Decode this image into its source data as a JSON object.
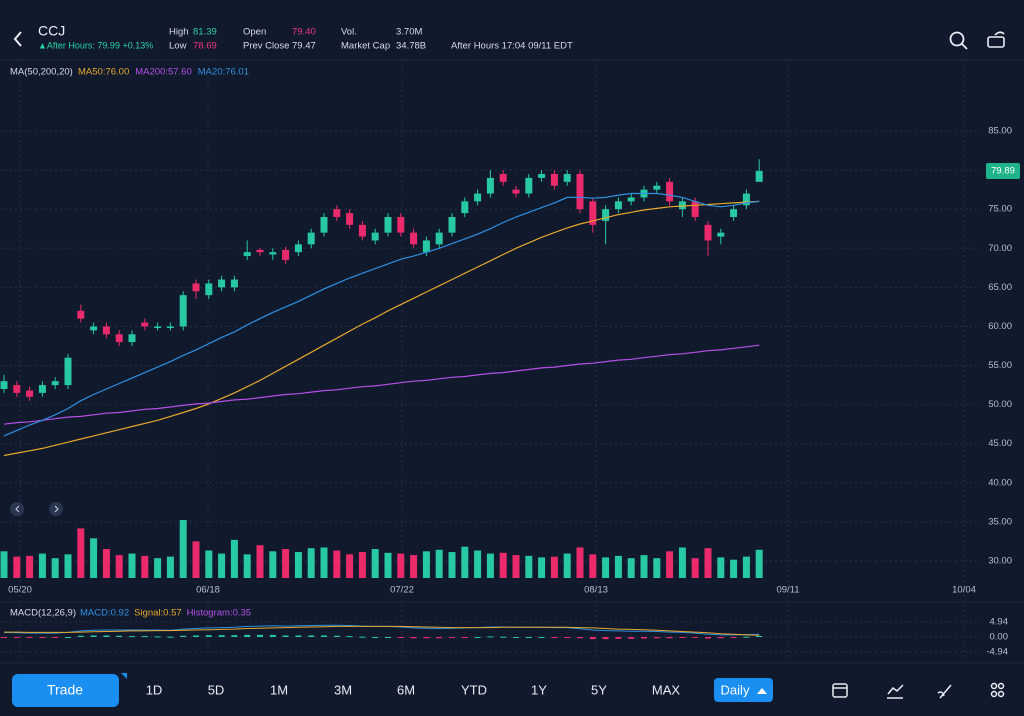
{
  "header": {
    "symbol": "CCJ",
    "after_hours": "▲After Hours: 79.99 +0.13%",
    "stats": [
      {
        "label": "High",
        "value": "81.39",
        "color": "#2bd3a4"
      },
      {
        "label": "Low",
        "value": "78.69",
        "color": "#f0367a"
      },
      {
        "label": "Open",
        "value": "79.40",
        "color": "#f0367a"
      },
      {
        "label": "Prev Close",
        "value": "79.47",
        "color": "#d6dbe6"
      },
      {
        "label": "Vol.",
        "value": "3.70M",
        "color": "#d6dbe6"
      },
      {
        "label": "Market Cap",
        "value": "34.78B",
        "color": "#d6dbe6"
      }
    ],
    "session": "After Hours 17:04 09/11 EDT"
  },
  "chart_data": {
    "type": "candlestick",
    "indicator_title": "MA(50,200,20)",
    "ma_labels": [
      "MA50:76.00",
      "MA200:57.60",
      "MA20:76.01"
    ],
    "price_tag": 79.89,
    "x_labels": [
      "05/20",
      "06/18",
      "07/22",
      "08/13",
      "09/11",
      "10/04"
    ],
    "up_color": "#26c9a1",
    "down_color": "#ea2a6b",
    "open": [
      52,
      52.5,
      51.8,
      51.5,
      52.5,
      52.5,
      62,
      59.5,
      60,
      59,
      58,
      60.5,
      59.8,
      59.8,
      60,
      65.5,
      64,
      65,
      65,
      69,
      69.8,
      69.2,
      69.8,
      69.5,
      70.5,
      72,
      75,
      74.5,
      73,
      71,
      72,
      74,
      72,
      69.5,
      70.5,
      72,
      74.5,
      76,
      77,
      79.5,
      77.5,
      77,
      79,
      79.5,
      78.5,
      79.5,
      76,
      73.5,
      75,
      76,
      76.5,
      77.5,
      78.5,
      75,
      76,
      73,
      71.5,
      74,
      75.5,
      78.5
    ],
    "high": [
      53.8,
      53,
      52.3,
      53,
      53.5,
      56.5,
      62.8,
      60.5,
      60.5,
      59.5,
      59.5,
      61,
      60.5,
      60.5,
      64.5,
      66,
      66,
      66.5,
      66.5,
      71,
      70,
      70,
      70.2,
      71,
      72.5,
      74.5,
      75.5,
      75,
      73.5,
      72.5,
      74.5,
      74.5,
      72.5,
      71.5,
      72.5,
      74.5,
      76.5,
      77.5,
      80,
      80,
      78,
      79.5,
      80,
      80,
      80,
      80,
      76.5,
      75.5,
      76.5,
      77,
      78,
      78.5,
      79,
      76.5,
      76.5,
      73.5,
      72.5,
      75.5,
      77.5,
      81.39
    ],
    "low": [
      51.5,
      51,
      50.5,
      51,
      52,
      52,
      60.5,
      59,
      58.5,
      57.5,
      57.5,
      59.5,
      59.5,
      59.5,
      59.5,
      63.5,
      63.5,
      64.5,
      64.5,
      68.5,
      69,
      68.5,
      68,
      69,
      70,
      71.5,
      73.5,
      72.5,
      71,
      70.5,
      71.5,
      71.5,
      70,
      69,
      70,
      71.5,
      74,
      75.5,
      76.5,
      78,
      76.5,
      76.5,
      78.5,
      77.5,
      78,
      74.5,
      72,
      70.5,
      74.5,
      75.5,
      76,
      77,
      75.5,
      74,
      73.5,
      69,
      70.5,
      73.5,
      75,
      78.69
    ],
    "close": [
      53,
      51.5,
      51,
      52.5,
      53,
      56,
      61,
      60,
      59,
      58,
      59,
      60,
      60,
      60,
      64,
      64.5,
      65.5,
      66,
      66,
      69.5,
      69.5,
      69.5,
      68.5,
      70.5,
      72,
      74,
      74,
      73,
      71.5,
      72,
      74,
      72,
      70.5,
      71,
      72,
      74,
      76,
      77,
      79,
      78.5,
      77,
      79,
      79.5,
      78,
      79.5,
      75,
      73,
      75,
      76,
      76.5,
      77.5,
      78,
      76,
      76,
      74,
      71,
      72,
      75,
      77,
      79.89
    ],
    "series": [
      {
        "name": "MA50",
        "color": "#e6a82c",
        "values": [
          43.5,
          43.8,
          44.1,
          44.4,
          44.8,
          45.2,
          45.6,
          46,
          46.4,
          46.8,
          47.2,
          47.6,
          48,
          48.5,
          49,
          49.5,
          50.1,
          50.8,
          51.5,
          52.3,
          53.1,
          54,
          54.9,
          55.8,
          56.7,
          57.6,
          58.5,
          59.4,
          60.3,
          61.1,
          62,
          62.8,
          63.6,
          64.4,
          65.2,
          66,
          66.8,
          67.6,
          68.4,
          69.2,
          70,
          70.7,
          71.4,
          72,
          72.6,
          73.1,
          73.5,
          73.9,
          74.3,
          74.6,
          74.9,
          75.1,
          75.3,
          75.4,
          75.5,
          75.6,
          75.7,
          75.8,
          75.9,
          76
        ]
      },
      {
        "name": "MA200",
        "color": "#b64fe8",
        "values": [
          47.5,
          47.7,
          47.8,
          48,
          48.2,
          48.4,
          48.5,
          48.7,
          48.9,
          49,
          49.2,
          49.4,
          49.5,
          49.7,
          49.9,
          50.1,
          50.2,
          50.4,
          50.6,
          50.7,
          50.9,
          51.1,
          51.3,
          51.4,
          51.6,
          51.8,
          51.9,
          52.1,
          52.3,
          52.4,
          52.6,
          52.8,
          53,
          53.1,
          53.3,
          53.5,
          53.6,
          53.8,
          54,
          54.1,
          54.3,
          54.5,
          54.7,
          54.8,
          55,
          55.2,
          55.3,
          55.5,
          55.7,
          55.8,
          56,
          56.2,
          56.4,
          56.5,
          56.7,
          56.9,
          57,
          57.2,
          57.4,
          57.6
        ]
      },
      {
        "name": "MA20",
        "color": "#2f8fe0",
        "values": [
          46,
          46.7,
          47.4,
          48,
          48.7,
          49.5,
          50.5,
          51.3,
          52,
          52.7,
          53.4,
          54.1,
          54.8,
          55.5,
          56.3,
          57,
          57.8,
          58.6,
          59.3,
          60.2,
          61,
          61.8,
          62.5,
          63.2,
          64,
          64.8,
          65.5,
          66.2,
          66.8,
          67.4,
          68,
          68.6,
          69,
          69.5,
          70,
          70.6,
          71.2,
          71.8,
          72.5,
          73.3,
          74,
          74.6,
          75.2,
          75.8,
          76.5,
          76.5,
          76.4,
          76.5,
          76.8,
          77,
          77,
          77,
          76.8,
          76.5,
          76,
          75.5,
          75.3,
          75.5,
          75.8,
          76.01
        ]
      }
    ],
    "volume": [
      3.5,
      2.8,
      2.9,
      3.2,
      2.6,
      3.1,
      6.5,
      5.2,
      3.8,
      3.0,
      3.2,
      2.9,
      2.6,
      2.8,
      7.6,
      4.8,
      3.6,
      3.2,
      5.0,
      3.1,
      4.3,
      3.5,
      3.8,
      3.4,
      3.9,
      4.0,
      3.6,
      3.1,
      3.4,
      3.8,
      3.3,
      3.2,
      3.0,
      3.5,
      3.7,
      3.4,
      4.1,
      3.6,
      3.2,
      3.3,
      3.0,
      2.9,
      2.7,
      2.8,
      3.2,
      4.0,
      3.1,
      2.7,
      2.9,
      2.6,
      3.0,
      2.6,
      3.5,
      4.0,
      2.6,
      3.9,
      2.7,
      2.4,
      2.8,
      3.7
    ],
    "ylim": [
      27.57,
      94.08
    ],
    "yticks": [
      {
        "value": 85,
        "label": "85.00"
      },
      {
        "value": 80,
        "label": "80.00"
      },
      {
        "value": 75,
        "label": "75.00"
      },
      {
        "value": 70,
        "label": "70.00"
      },
      {
        "value": 65,
        "label": "65.00"
      },
      {
        "value": 60,
        "label": "60.00"
      },
      {
        "value": 55,
        "label": "55.00"
      },
      {
        "value": 50,
        "label": "50.00"
      },
      {
        "value": 45,
        "label": "45.00"
      },
      {
        "value": 40,
        "label": "40.00"
      },
      {
        "value": 35,
        "label": "35.00"
      },
      {
        "value": 30,
        "label": "30.00"
      }
    ],
    "grid": true,
    "macd": {
      "title": "MACD(12,26,9)",
      "labels": [
        {
          "text": "MACD:0.92",
          "color": "#2f8fe0"
        },
        {
          "text": "Signal:0.57",
          "color": "#e6a82c"
        },
        {
          "text": "Histogram:0.35",
          "color": "#b64fe8"
        }
      ],
      "macd": [
        1.5,
        1.4,
        1.3,
        1.3,
        1.3,
        1.5,
        2,
        2.2,
        2.3,
        2.3,
        2.3,
        2.3,
        2.3,
        2.2,
        2.6,
        2.8,
        3,
        3.1,
        3.2,
        3.5,
        3.6,
        3.7,
        3.6,
        3.7,
        3.8,
        3.9,
        3.9,
        3.8,
        3.6,
        3.5,
        3.5,
        3.3,
        3,
        2.9,
        2.8,
        2.9,
        3,
        3.1,
        3.3,
        3.3,
        3.2,
        3.2,
        3.2,
        3.1,
        3.1,
        2.7,
        2.3,
        2.1,
        2,
        1.9,
        1.9,
        1.8,
        1.6,
        1.5,
        1.3,
        0.9,
        0.7,
        0.7,
        0.8,
        0.92
      ],
      "signal": [
        1.6,
        1.6,
        1.5,
        1.5,
        1.5,
        1.5,
        1.6,
        1.7,
        1.8,
        1.9,
        2,
        2,
        2.1,
        2.1,
        2.2,
        2.3,
        2.4,
        2.5,
        2.6,
        2.8,
        2.9,
        3,
        3.1,
        3.2,
        3.3,
        3.4,
        3.5,
        3.5,
        3.5,
        3.5,
        3.5,
        3.5,
        3.4,
        3.3,
        3.2,
        3.1,
        3.1,
        3.1,
        3.1,
        3.2,
        3.2,
        3.2,
        3.2,
        3.2,
        3.2,
        3.1,
        3,
        2.8,
        2.6,
        2.5,
        2.4,
        2.2,
        2.0,
        1.8,
        1.6,
        1.4,
        1.1,
        0.9,
        0.7,
        0.57
      ],
      "histogram": [
        -0.1,
        -0.2,
        -0.2,
        -0.2,
        -0.2,
        0,
        0.4,
        0.5,
        0.5,
        0.4,
        0.3,
        0.3,
        0.2,
        0.1,
        0.4,
        0.5,
        0.6,
        0.6,
        0.6,
        0.7,
        0.7,
        0.7,
        0.5,
        0.5,
        0.5,
        0.5,
        0.4,
        0.3,
        0.1,
        0,
        0,
        -0.2,
        -0.4,
        -0.4,
        -0.4,
        -0.2,
        -0.1,
        0,
        0.2,
        0.1,
        0,
        0,
        0,
        -0.1,
        -0.1,
        -0.4,
        -0.7,
        -0.7,
        -0.6,
        -0.6,
        -0.5,
        -0.4,
        -0.4,
        -0.3,
        -0.3,
        -0.5,
        -0.4,
        -0.2,
        0.1,
        0.35
      ],
      "ylim": [
        -4.94,
        4.94
      ],
      "yticks": [
        4.94,
        {
          "value": 0,
          "label": "0.00"
        },
        -4.94
      ]
    }
  },
  "toolbar": {
    "trade": "Trade",
    "ranges": [
      "1D",
      "5D",
      "1M",
      "3M",
      "6M",
      "YTD",
      "1Y",
      "5Y",
      "MAX"
    ],
    "interval": "Daily"
  }
}
